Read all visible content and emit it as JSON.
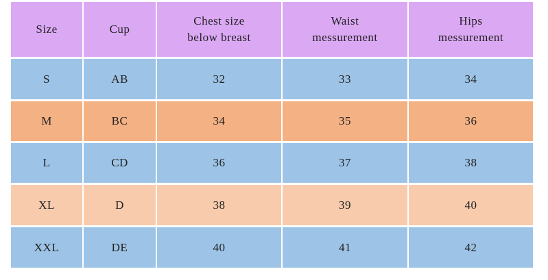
{
  "table": {
    "header": [
      "Size",
      "Cup",
      "Chest size\nbelow breast",
      "Waist\nmessurement",
      "Hips\nmessurement"
    ],
    "rows": [
      [
        "S",
        "AB",
        32,
        33,
        34
      ],
      [
        "M",
        "BC",
        34,
        35,
        36
      ],
      [
        "L",
        "CD",
        36,
        37,
        38
      ],
      [
        "XL",
        "D",
        38,
        39,
        40
      ],
      [
        "XXL",
        "DE",
        40,
        41,
        42
      ]
    ]
  }
}
